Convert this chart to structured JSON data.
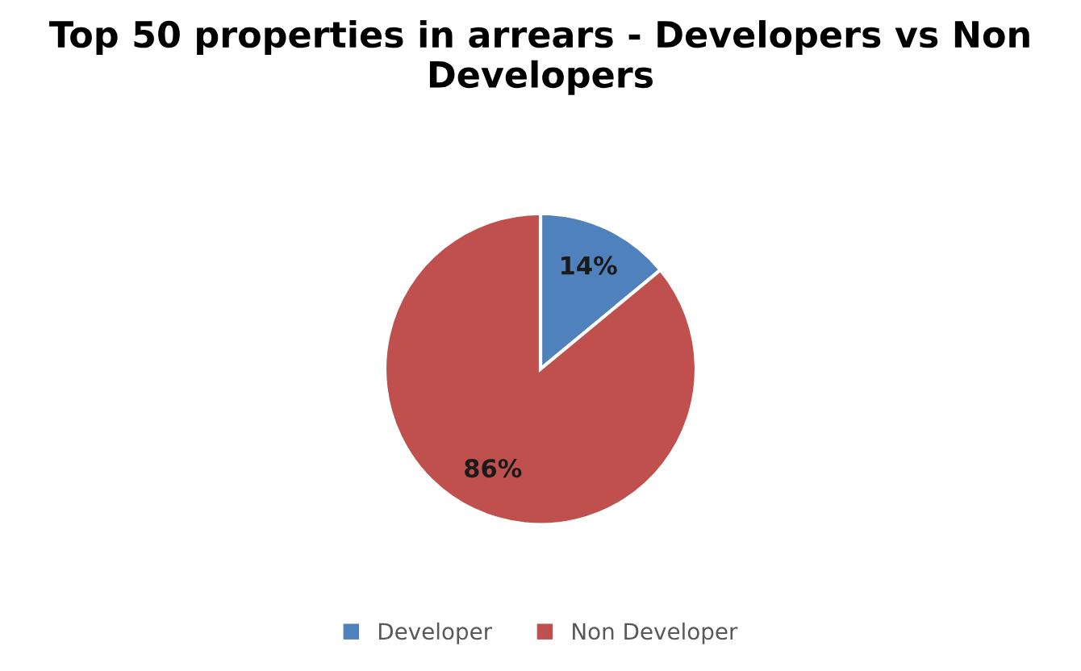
{
  "chart_data": {
    "type": "pie",
    "title": "Top 50 properties in arrears - Developers vs Non Developers",
    "categories": [
      "Developer",
      "Non Developer"
    ],
    "values": [
      14,
      86
    ],
    "colors": [
      "#4f81bd",
      "#c0504d"
    ],
    "value_labels": [
      "14%",
      "86%"
    ],
    "legend": "bottom"
  }
}
